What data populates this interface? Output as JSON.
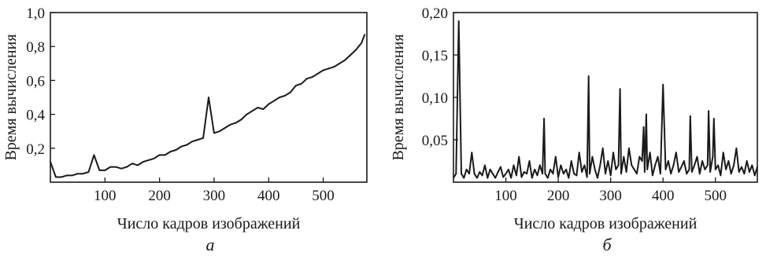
{
  "chart_data": [
    {
      "type": "line",
      "panel_label": "а",
      "xlabel": "Число кадров изображений",
      "ylabel": "Время вычисления",
      "xlim": [
        0,
        580
      ],
      "ylim": [
        0,
        1.0
      ],
      "xticks": [
        100,
        200,
        300,
        400,
        500
      ],
      "xtick_labels": [
        "100",
        "200",
        "300",
        "400",
        "500"
      ],
      "yticks": [
        0.2,
        0.4,
        0.6,
        0.8,
        1.0
      ],
      "ytick_labels": [
        "0,2",
        "0,4",
        "0,6",
        "0,8",
        "1,0"
      ],
      "grid": false,
      "series": [
        {
          "x": [
            0,
            10,
            20,
            30,
            40,
            50,
            60,
            70,
            80,
            90,
            100,
            110,
            120,
            130,
            140,
            150,
            160,
            170,
            180,
            190,
            200,
            210,
            220,
            230,
            240,
            250,
            260,
            270,
            280,
            290,
            300,
            310,
            320,
            330,
            340,
            350,
            360,
            370,
            380,
            390,
            400,
            410,
            420,
            430,
            440,
            450,
            460,
            470,
            480,
            490,
            500,
            510,
            520,
            530,
            540,
            550,
            560,
            570,
            576
          ],
          "values": [
            0.12,
            0.03,
            0.03,
            0.04,
            0.04,
            0.05,
            0.05,
            0.06,
            0.16,
            0.07,
            0.07,
            0.09,
            0.09,
            0.08,
            0.09,
            0.11,
            0.1,
            0.12,
            0.13,
            0.14,
            0.16,
            0.16,
            0.18,
            0.19,
            0.21,
            0.22,
            0.24,
            0.25,
            0.26,
            0.5,
            0.29,
            0.3,
            0.32,
            0.34,
            0.35,
            0.37,
            0.4,
            0.42,
            0.44,
            0.43,
            0.46,
            0.48,
            0.5,
            0.51,
            0.53,
            0.57,
            0.58,
            0.61,
            0.62,
            0.64,
            0.66,
            0.67,
            0.68,
            0.7,
            0.72,
            0.75,
            0.78,
            0.82,
            0.87
          ]
        }
      ]
    },
    {
      "type": "line",
      "panel_label": "б",
      "xlabel": "Число кадров изображений",
      "ylabel": "Время вычисления",
      "xlim": [
        0,
        580
      ],
      "ylim": [
        0,
        0.2
      ],
      "xticks": [
        100,
        200,
        300,
        400,
        500
      ],
      "xtick_labels": [
        "100",
        "200",
        "300",
        "400",
        "500"
      ],
      "yticks": [
        0.05,
        0.1,
        0.15,
        0.2
      ],
      "ytick_labels": [
        "0,05",
        "0,10",
        "0,15",
        "0,20"
      ],
      "grid": false,
      "series": [
        {
          "x": [
            0,
            5,
            10,
            15,
            20,
            25,
            30,
            35,
            40,
            45,
            50,
            55,
            60,
            65,
            70,
            75,
            80,
            85,
            90,
            95,
            100,
            105,
            110,
            115,
            120,
            125,
            130,
            135,
            140,
            145,
            150,
            155,
            160,
            165,
            170,
            173,
            175,
            180,
            185,
            190,
            195,
            200,
            205,
            210,
            215,
            220,
            225,
            230,
            235,
            240,
            245,
            250,
            255,
            258,
            260,
            265,
            270,
            275,
            280,
            285,
            290,
            295,
            300,
            305,
            310,
            315,
            318,
            320,
            325,
            330,
            335,
            340,
            345,
            350,
            355,
            360,
            363,
            365,
            368,
            370,
            375,
            380,
            385,
            390,
            395,
            400,
            405,
            410,
            415,
            420,
            425,
            430,
            435,
            440,
            445,
            450,
            452,
            455,
            460,
            465,
            470,
            475,
            480,
            485,
            487,
            490,
            495,
            497,
            500,
            505,
            510,
            515,
            520,
            525,
            530,
            535,
            540,
            545,
            550,
            555,
            560,
            565,
            570,
            575,
            580
          ],
          "values": [
            0.005,
            0.01,
            0.19,
            0.01,
            0.005,
            0.015,
            0.01,
            0.035,
            0.01,
            0.005,
            0.012,
            0.008,
            0.02,
            0.005,
            0.015,
            0.01,
            0.005,
            0.012,
            0.018,
            0.006,
            0.01,
            0.015,
            0.005,
            0.02,
            0.008,
            0.03,
            0.006,
            0.012,
            0.01,
            0.025,
            0.005,
            0.015,
            0.008,
            0.02,
            0.01,
            0.075,
            0.01,
            0.005,
            0.015,
            0.01,
            0.03,
            0.006,
            0.02,
            0.01,
            0.015,
            0.005,
            0.025,
            0.01,
            0.008,
            0.035,
            0.012,
            0.02,
            0.006,
            0.125,
            0.01,
            0.03,
            0.015,
            0.005,
            0.02,
            0.04,
            0.01,
            0.025,
            0.008,
            0.035,
            0.015,
            0.02,
            0.11,
            0.01,
            0.03,
            0.012,
            0.04,
            0.02,
            0.015,
            0.01,
            0.03,
            0.025,
            0.065,
            0.012,
            0.08,
            0.015,
            0.035,
            0.008,
            0.02,
            0.03,
            0.01,
            0.115,
            0.015,
            0.025,
            0.01,
            0.02,
            0.035,
            0.012,
            0.018,
            0.025,
            0.01,
            0.015,
            0.078,
            0.012,
            0.02,
            0.03,
            0.01,
            0.025,
            0.015,
            0.02,
            0.084,
            0.012,
            0.03,
            0.075,
            0.015,
            0.02,
            0.008,
            0.035,
            0.015,
            0.025,
            0.01,
            0.02,
            0.04,
            0.012,
            0.018,
            0.01,
            0.025,
            0.012,
            0.02,
            0.008,
            0.018
          ]
        }
      ]
    }
  ]
}
